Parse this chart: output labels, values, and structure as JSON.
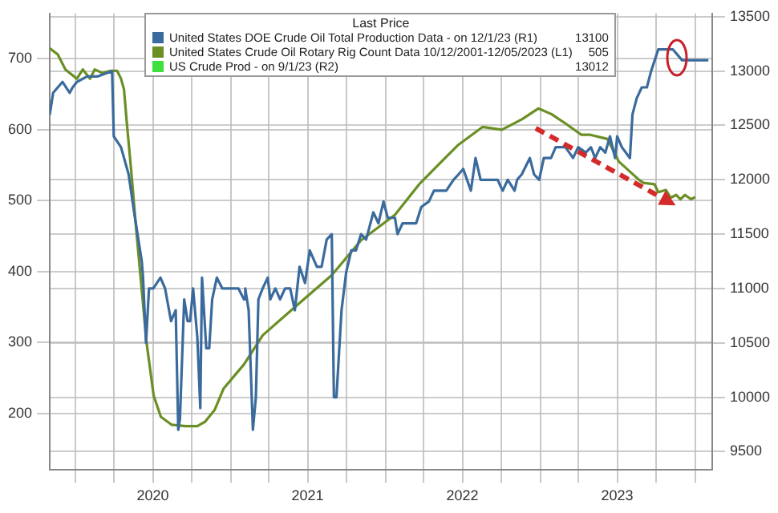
{
  "chart_data": {
    "type": "line",
    "legend_title": "Last Price",
    "legend": "top",
    "grid": true,
    "marker": "none",
    "xlim": [
      "2019-11-01",
      "2024-02-10"
    ],
    "xticks": [
      {
        "value": "2020-01-01",
        "label": null
      },
      {
        "value": "2020-04-01",
        "label": null
      },
      {
        "value": "2020-07-01",
        "label": "2020"
      },
      {
        "value": "2020-10-01",
        "label": null
      },
      {
        "value": "2021-01-01",
        "label": null
      },
      {
        "value": "2021-04-01",
        "label": null
      },
      {
        "value": "2021-07-01",
        "label": "2021"
      },
      {
        "value": "2021-10-01",
        "label": null
      },
      {
        "value": "2022-01-01",
        "label": null
      },
      {
        "value": "2022-04-01",
        "label": null
      },
      {
        "value": "2022-07-01",
        "label": "2022"
      },
      {
        "value": "2022-10-01",
        "label": null
      },
      {
        "value": "2023-01-01",
        "label": null
      },
      {
        "value": "2023-04-01",
        "label": null
      },
      {
        "value": "2023-07-01",
        "label": "2023"
      },
      {
        "value": "2023-10-01",
        "label": null
      },
      {
        "value": "2024-01-01",
        "label": null
      }
    ],
    "ylim": [
      9330,
      13530
    ],
    "yticks": [
      9500,
      10000,
      10500,
      11000,
      11500,
      12000,
      12500,
      13000,
      13500
    ],
    "y2lim": [
      120,
      764
    ],
    "y2ticks": [
      200,
      300,
      400,
      500,
      600,
      700
    ],
    "annotations": [
      "13100",
      "505",
      "13012"
    ],
    "series": [
      {
        "name": "United States DOE Crude Oil Total Production Data -  on 12/1/23  (R1)",
        "color": "#3b6b9c",
        "axis": "y",
        "x": [
          "2019-11-01",
          "2019-11-09",
          "2019-11-20",
          "2019-12-01",
          "2019-12-18",
          "2019-12-25",
          "2020-01-04",
          "2020-01-28",
          "2020-02-21",
          "2020-03-27",
          "2020-03-31",
          "2020-04-17",
          "2020-05-05",
          "2020-05-18",
          "2020-06-05",
          "2020-06-08",
          "2020-06-15",
          "2020-06-22",
          "2020-07-02",
          "2020-07-19",
          "2020-07-30",
          "2020-08-13",
          "2020-08-24",
          "2020-08-30",
          "2020-09-03",
          "2020-09-13",
          "2020-09-21",
          "2020-09-27",
          "2020-10-04",
          "2020-10-14",
          "2020-10-21",
          "2020-10-25",
          "2020-11-04",
          "2020-11-11",
          "2020-11-18",
          "2020-11-29",
          "2020-12-12",
          "2021-01-19",
          "2021-02-01",
          "2021-02-04",
          "2021-02-12",
          "2021-02-22",
          "2021-03-01",
          "2021-03-07",
          "2021-03-17",
          "2021-03-29",
          "2021-04-04",
          "2021-04-16",
          "2021-04-27",
          "2021-05-09",
          "2021-05-21",
          "2021-06-01",
          "2021-06-12",
          "2021-06-25",
          "2021-07-06",
          "2021-07-23",
          "2021-08-03",
          "2021-08-15",
          "2021-08-27",
          "2021-09-01",
          "2021-09-07",
          "2021-09-19",
          "2021-09-30",
          "2021-10-12",
          "2021-10-23",
          "2021-11-04",
          "2021-11-16",
          "2021-12-03",
          "2021-12-15",
          "2021-12-27",
          "2022-01-06",
          "2022-01-23",
          "2022-01-29",
          "2022-02-10",
          "2022-03-14",
          "2022-03-26",
          "2022-04-13",
          "2022-04-25",
          "2022-05-12",
          "2022-05-24",
          "2022-06-10",
          "2022-06-22",
          "2022-07-03",
          "2022-07-21",
          "2022-08-01",
          "2022-08-13",
          "2022-08-25",
          "2022-09-22",
          "2022-10-04",
          "2022-10-16",
          "2022-11-01",
          "2022-11-07",
          "2022-11-18",
          "2022-12-07",
          "2022-12-17",
          "2022-12-29",
          "2023-01-09",
          "2023-01-26",
          "2023-02-06",
          "2023-02-18",
          "2023-03-01",
          "2023-03-19",
          "2023-03-31",
          "2023-04-18",
          "2023-04-30",
          "2023-05-10",
          "2023-05-22",
          "2023-06-03",
          "2023-06-14",
          "2023-06-26",
          "2023-07-01",
          "2023-07-12",
          "2023-07-31",
          "2023-08-06",
          "2023-08-16",
          "2023-08-28",
          "2023-09-09",
          "2023-09-19",
          "2023-10-06",
          "2023-11-09",
          "2023-12-01",
          "2024-02-01"
        ],
        "values": [
          12600,
          12800,
          12850,
          12900,
          12800,
          12850,
          12900,
          12950,
          12950,
          13000,
          12400,
          12300,
          12050,
          11700,
          11250,
          11100,
          10500,
          11000,
          11000,
          11100,
          11000,
          10700,
          10800,
          9700,
          9800,
          10900,
          10700,
          10700,
          11000,
          10550,
          9900,
          11100,
          10450,
          10450,
          10900,
          11100,
          11000,
          11000,
          10900,
          11000,
          10800,
          9700,
          10000,
          10900,
          11000,
          11100,
          10900,
          11000,
          10900,
          11000,
          11000,
          10800,
          11200,
          11050,
          11350,
          11200,
          11200,
          11450,
          11500,
          10000,
          10000,
          10800,
          11150,
          11350,
          11350,
          11500,
          11450,
          11700,
          11600,
          11800,
          11650,
          11650,
          11500,
          11600,
          11600,
          11750,
          11800,
          11900,
          11900,
          11900,
          12000,
          12050,
          12100,
          11900,
          12200,
          12000,
          12000,
          12000,
          11900,
          12000,
          11900,
          12000,
          12050,
          12200,
          12050,
          12000,
          12200,
          12200,
          12300,
          12300,
          12300,
          12200,
          12300,
          12250,
          12300,
          12200,
          12300,
          12250,
          12400,
          12200,
          12400,
          12300,
          12200,
          12600,
          12750,
          12850,
          12850,
          13000,
          13200,
          13200,
          13100,
          13100
        ]
      },
      {
        "name": "United States Crude Oil Rotary Rig Count Data 10/12/2001-12/05/2023  (L1)",
        "color": "#6a8f24",
        "axis": "y2",
        "x": [
          "2019-11-01",
          "2019-11-20",
          "2019-12-08",
          "2020-01-04",
          "2020-01-18",
          "2020-02-04",
          "2020-02-15",
          "2020-03-04",
          "2020-03-22",
          "2020-04-08",
          "2020-04-17",
          "2020-04-24",
          "2020-05-01",
          "2020-05-12",
          "2020-05-22",
          "2020-06-05",
          "2020-06-16",
          "2020-07-03",
          "2020-07-20",
          "2020-08-14",
          "2020-09-16",
          "2020-10-14",
          "2020-11-01",
          "2020-11-24",
          "2020-12-15",
          "2021-01-08",
          "2021-02-01",
          "2021-03-17",
          "2021-06-05",
          "2021-08-27",
          "2021-11-04",
          "2022-01-23",
          "2022-03-21",
          "2022-05-16",
          "2022-06-20",
          "2022-08-18",
          "2022-10-02",
          "2022-11-19",
          "2022-12-27",
          "2023-01-27",
          "2023-03-03",
          "2023-04-07",
          "2023-04-27",
          "2023-06-08",
          "2023-07-05",
          "2023-08-22",
          "2023-09-01",
          "2023-09-27",
          "2023-10-06",
          "2023-10-24",
          "2023-11-04",
          "2023-11-17",
          "2023-11-27",
          "2023-12-08",
          "2023-12-22",
          "2024-01-01"
        ],
        "values": [
          715,
          706,
          685,
          672,
          685,
          672,
          685,
          680,
          683,
          683,
          672,
          657,
          608,
          536,
          465,
          374,
          301,
          225,
          195,
          184,
          182,
          182,
          188,
          205,
          235,
          252,
          269,
          310,
          352,
          395,
          444,
          480,
          523,
          557,
          578,
          604,
          600,
          615,
          630,
          622,
          608,
          593,
          593,
          587,
          555,
          529,
          525,
          523,
          512,
          515,
          504,
          508,
          502,
          508,
          502,
          505
        ]
      },
      {
        "name": "US Crude Prod -  on 9/1/23  (R2)",
        "color": "#3ee03e",
        "axis": "y"
      }
    ]
  }
}
